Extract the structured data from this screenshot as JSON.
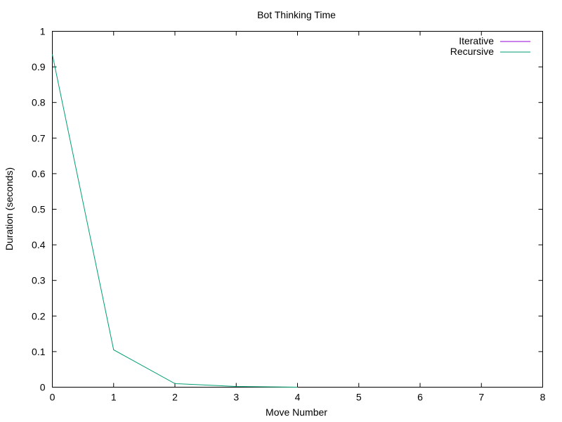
{
  "chart_data": {
    "type": "line",
    "title": "Bot Thinking Time",
    "xlabel": "Move Number",
    "ylabel": "Duration (seconds)",
    "xlim": [
      0,
      8
    ],
    "ylim": [
      0,
      1
    ],
    "xticks": [
      "0",
      "1",
      "2",
      "3",
      "4",
      "5",
      "6",
      "7",
      "8"
    ],
    "yticks": [
      "0",
      "0.1",
      "0.2",
      "0.3",
      "0.4",
      "0.5",
      "0.6",
      "0.7",
      "0.8",
      "0.9",
      "1"
    ],
    "grid": false,
    "legend_position": "top-right",
    "series": [
      {
        "name": "Iterative",
        "color": "#9400d3",
        "x": [],
        "y": []
      },
      {
        "name": "Recursive",
        "color": "#009e73",
        "x": [
          0,
          1,
          2,
          3,
          4
        ],
        "y": [
          0.935,
          0.105,
          0.01,
          0.002,
          0.0
        ]
      }
    ]
  }
}
